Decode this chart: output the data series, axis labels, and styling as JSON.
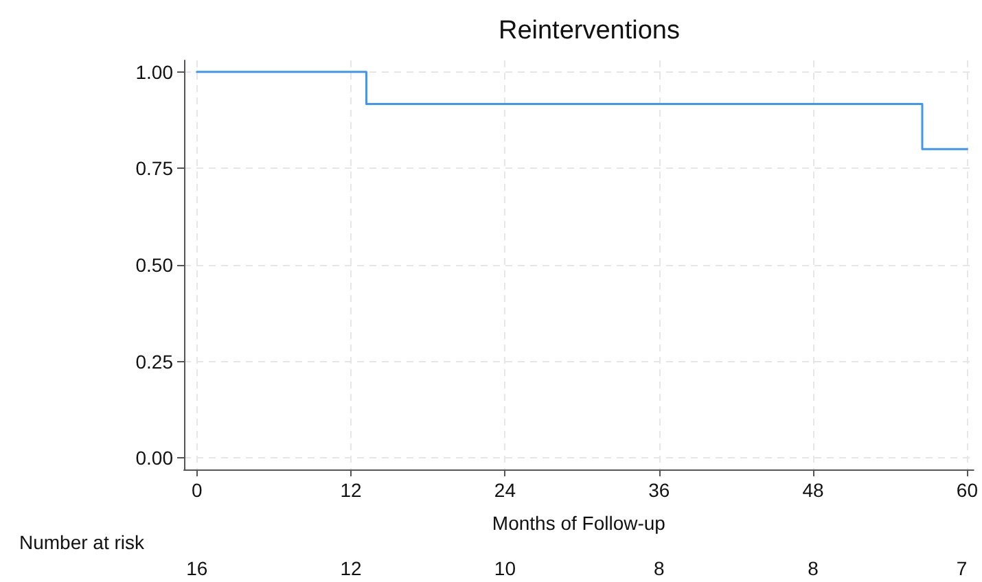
{
  "chart_data": {
    "type": "step",
    "title": "Reinterventions",
    "xlabel": "Months of Follow-up",
    "x": [
      0,
      13.2,
      56.5,
      60
    ],
    "series": [
      {
        "color": "#3f97f5",
        "values": [
          1.0,
          0.917,
          0.8,
          0.8
        ]
      }
    ],
    "xlim": [
      -1,
      60.5
    ],
    "xticks": [
      0,
      12,
      24,
      36,
      48,
      60
    ],
    "ylim": [
      -0.03,
      1.03
    ],
    "yticks": [
      {
        "value": 0,
        "label": "0.00"
      },
      {
        "value": 0.25,
        "label": "0.25"
      },
      {
        "value": 0.5,
        "label": "0.50"
      },
      {
        "value": 0.75,
        "label": "0.75"
      },
      {
        "value": 1,
        "label": "1.00"
      }
    ],
    "grid": true,
    "marker": "none",
    "line_style": "solid",
    "annotations": [
      "Number at risk",
      "16",
      "12",
      "10",
      "8",
      "8",
      "7"
    ]
  }
}
